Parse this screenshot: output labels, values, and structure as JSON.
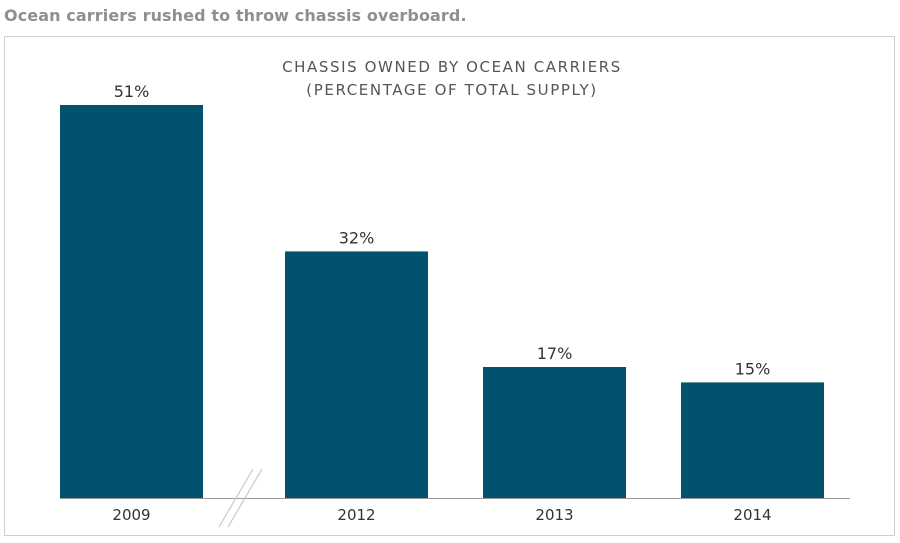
{
  "caption": "Ocean carriers rushed to throw chassis overboard.",
  "chart_data": {
    "type": "bar",
    "title_lines": [
      "CHASSIS OWNED BY OCEAN CARRIERS",
      "(PERCENTAGE OF TOTAL SUPPLY)"
    ],
    "categories": [
      "2009",
      "2012",
      "2013",
      "2014"
    ],
    "values": [
      51,
      32,
      17,
      15
    ],
    "data_labels": [
      "51%",
      "32%",
      "17%",
      "15%"
    ],
    "unit": "%",
    "xlabel": "",
    "ylabel": "",
    "ylim": [
      0,
      51
    ],
    "axis_break_between": [
      "2009",
      "2012"
    ],
    "grid": false,
    "legend": "none",
    "colors": {
      "bar": "#00526d",
      "axis": "#9a9a9a",
      "break_marks": "#c8c8c8",
      "title": "#555555",
      "text": "#333333"
    }
  }
}
